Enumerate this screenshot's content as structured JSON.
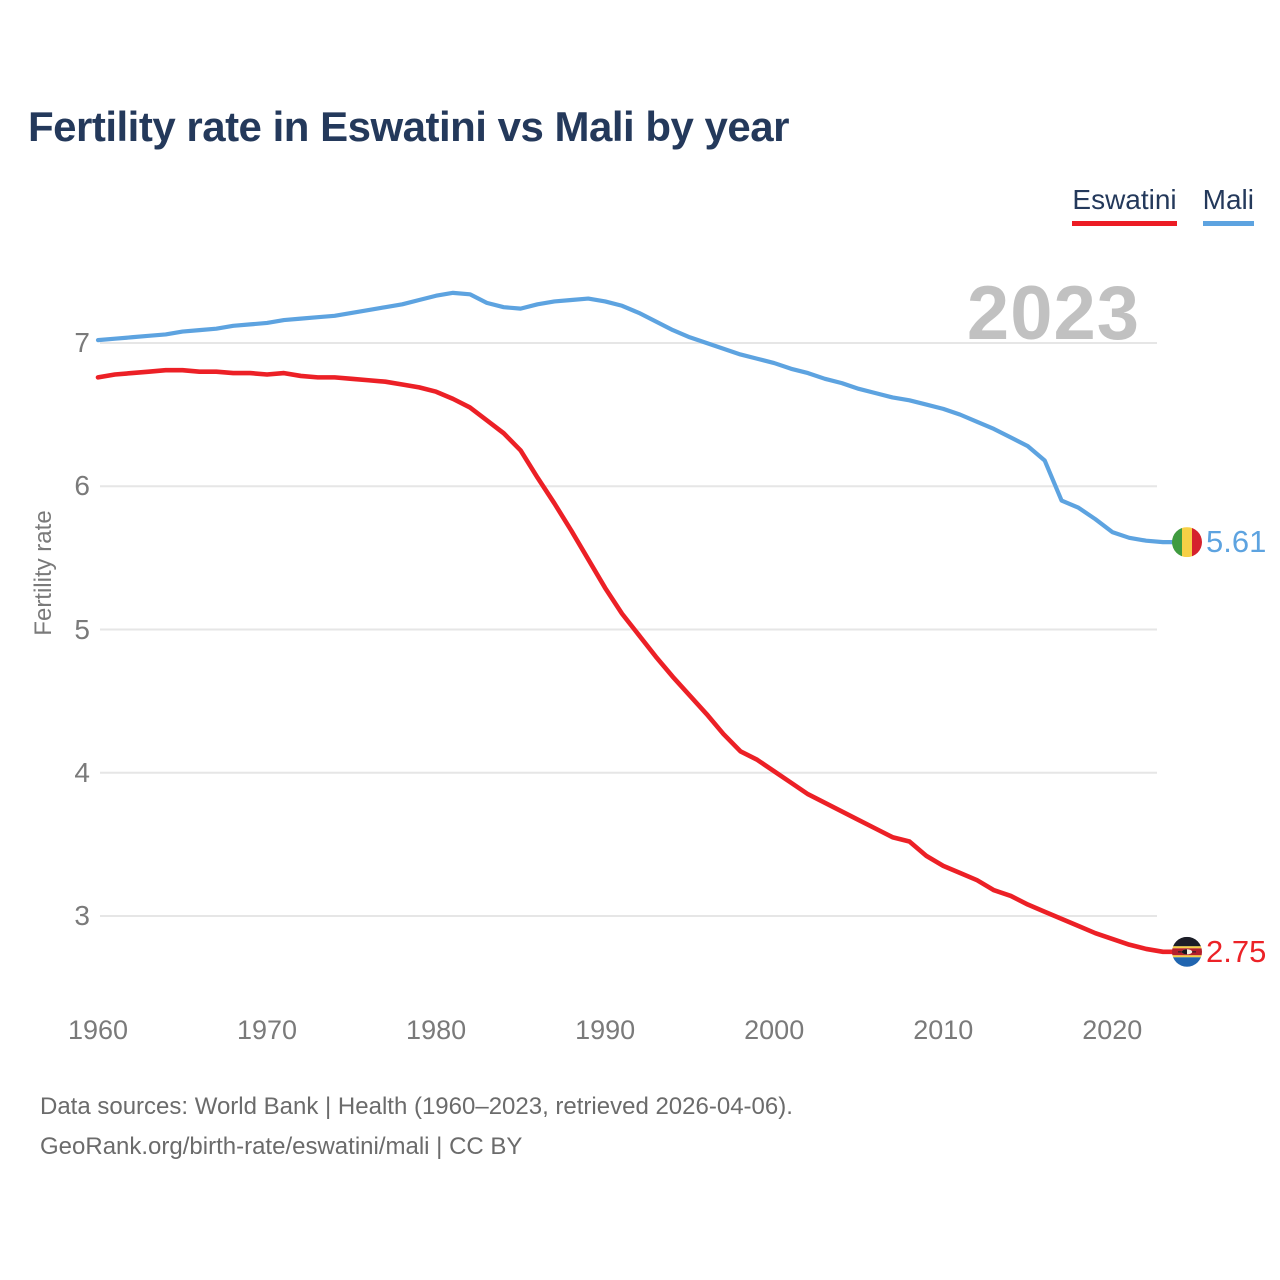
{
  "header": {
    "title": "Fertility rate in Eswatini vs Mali by year"
  },
  "legend": [
    {
      "label": "Eswatini",
      "color": "#ec1c24"
    },
    {
      "label": "Mali",
      "color": "#5da3e0"
    }
  ],
  "watermark_year": "2023",
  "colors": {
    "eswatini_line": "#ec2026",
    "mali_line": "#5da3e0",
    "title_text": "#24395b",
    "axis_text": "#7a7a7a",
    "watermark": "#c1c1c1",
    "gridline": "#e6e6e6",
    "footer_text": "#6b6b6b"
  },
  "chart_data": {
    "type": "line",
    "title": "Fertility rate in Eswatini vs Mali by year",
    "xlabel": "",
    "ylabel": "Fertility rate",
    "grid": "horizontal",
    "legend_position": "top-right",
    "yticks": [
      3,
      4,
      5,
      6,
      7
    ],
    "xticks": [
      1960,
      1970,
      1980,
      1990,
      2000,
      2010,
      2020
    ],
    "ylim": [
      2.6,
      7.5
    ],
    "xlim": [
      1960,
      2023
    ],
    "x": [
      1960,
      1961,
      1962,
      1963,
      1964,
      1965,
      1966,
      1967,
      1968,
      1969,
      1970,
      1971,
      1972,
      1973,
      1974,
      1975,
      1976,
      1977,
      1978,
      1979,
      1980,
      1981,
      1982,
      1983,
      1984,
      1985,
      1986,
      1987,
      1988,
      1989,
      1990,
      1991,
      1992,
      1993,
      1994,
      1995,
      1996,
      1997,
      1998,
      1999,
      2000,
      2001,
      2002,
      2003,
      2004,
      2005,
      2006,
      2007,
      2008,
      2009,
      2010,
      2011,
      2012,
      2013,
      2014,
      2015,
      2016,
      2017,
      2018,
      2019,
      2020,
      2021,
      2022,
      2023
    ],
    "series": [
      {
        "name": "Eswatini",
        "color": "#ec2026",
        "end_label": "2.75",
        "end_value": 2.75,
        "values": [
          6.76,
          6.78,
          6.79,
          6.8,
          6.81,
          6.81,
          6.8,
          6.8,
          6.79,
          6.79,
          6.78,
          6.79,
          6.77,
          6.76,
          6.76,
          6.75,
          6.74,
          6.73,
          6.71,
          6.69,
          6.66,
          6.61,
          6.55,
          6.46,
          6.37,
          6.25,
          6.06,
          5.88,
          5.69,
          5.49,
          5.29,
          5.11,
          4.96,
          4.81,
          4.67,
          4.54,
          4.41,
          4.27,
          4.15,
          4.09,
          4.01,
          3.93,
          3.85,
          3.79,
          3.73,
          3.67,
          3.61,
          3.55,
          3.52,
          3.42,
          3.35,
          3.3,
          3.25,
          3.18,
          3.14,
          3.08,
          3.03,
          2.98,
          2.93,
          2.88,
          2.84,
          2.8,
          2.77,
          2.75
        ]
      },
      {
        "name": "Mali",
        "color": "#5da3e0",
        "end_label": "5.61",
        "end_value": 5.61,
        "values": [
          7.02,
          7.03,
          7.04,
          7.05,
          7.06,
          7.08,
          7.09,
          7.1,
          7.12,
          7.13,
          7.14,
          7.16,
          7.17,
          7.18,
          7.19,
          7.21,
          7.23,
          7.25,
          7.27,
          7.3,
          7.33,
          7.35,
          7.34,
          7.28,
          7.25,
          7.24,
          7.27,
          7.29,
          7.3,
          7.31,
          7.29,
          7.26,
          7.21,
          7.15,
          7.09,
          7.04,
          7.0,
          6.96,
          6.92,
          6.89,
          6.86,
          6.82,
          6.79,
          6.75,
          6.72,
          6.68,
          6.65,
          6.62,
          6.6,
          6.57,
          6.54,
          6.5,
          6.45,
          6.4,
          6.34,
          6.28,
          6.18,
          5.9,
          5.85,
          5.77,
          5.68,
          5.64,
          5.62,
          5.61
        ]
      }
    ]
  },
  "footer": {
    "line1": "Data sources: World Bank | Health (1960–2023, retrieved 2026-04-06).",
    "line2": "GeoRank.org/birth-rate/eswatini/mali | CC BY"
  }
}
